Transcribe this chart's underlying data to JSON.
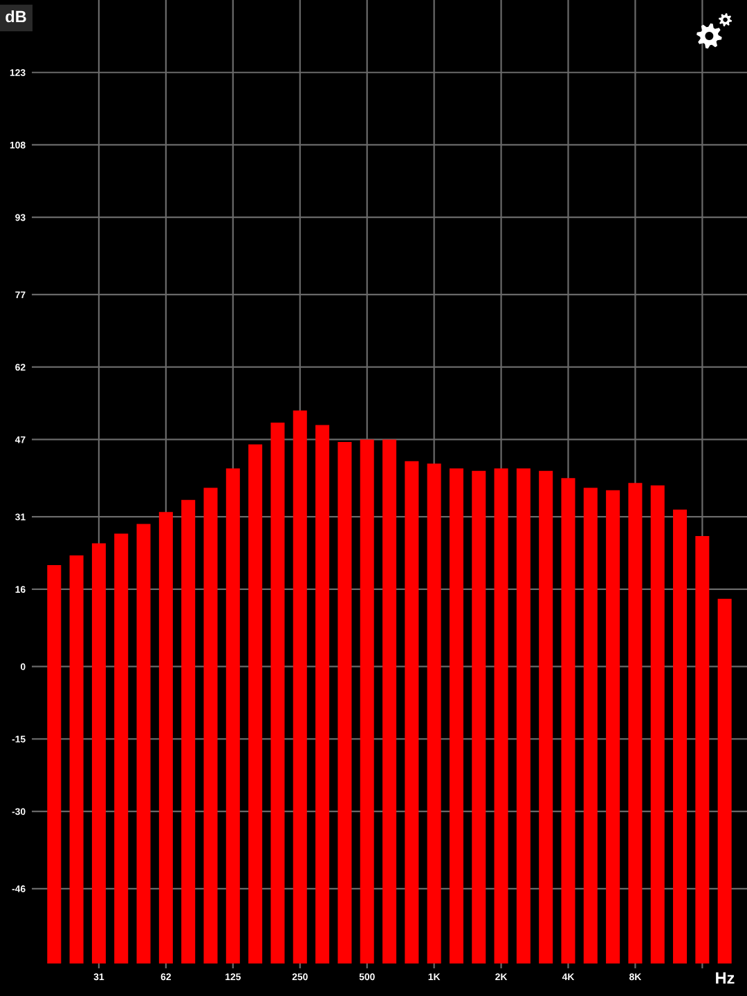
{
  "chart_data": {
    "type": "bar",
    "xlabel": "Hz",
    "ylabel": "dB",
    "categories": [
      null,
      null,
      "31",
      null,
      null,
      "62",
      null,
      null,
      "125",
      null,
      null,
      "250",
      null,
      null,
      "500",
      null,
      null,
      "1K",
      null,
      null,
      "2K",
      null,
      null,
      "4K",
      null,
      null,
      "8K",
      null,
      null,
      null,
      null
    ],
    "values": [
      82.5,
      84.5,
      87,
      89,
      91,
      93.5,
      96,
      98.5,
      102.5,
      107.5,
      112,
      114.5,
      111.5,
      108,
      108.5,
      108.5,
      104,
      103.5,
      102.5,
      102,
      102.5,
      102.5,
      102,
      100.5,
      98.5,
      98,
      99.5,
      99,
      94,
      88.5,
      75.5
    ],
    "base": [
      -61.5,
      -61.5,
      -61.5,
      -61.5,
      -61.5,
      -61.5,
      -61.5,
      -61.5,
      -61.5,
      -61.5,
      -61.5,
      -61.5,
      -61.5,
      -61.5,
      -61.5,
      -61.5,
      -61.5,
      -61.5,
      -61.5,
      -61.5,
      -61.5,
      -61.5,
      -61.5,
      -61.5,
      -61.5,
      -61.5,
      -61.5,
      -61.5,
      -61.5,
      -61.5,
      -61.5
    ],
    "color": "#ff0000",
    "ylim": [
      -62.5,
      138
    ],
    "yticks": [
      -46,
      -30,
      -15,
      0,
      16,
      31,
      47,
      62,
      77,
      93,
      108,
      123
    ],
    "grid": true
  }
}
